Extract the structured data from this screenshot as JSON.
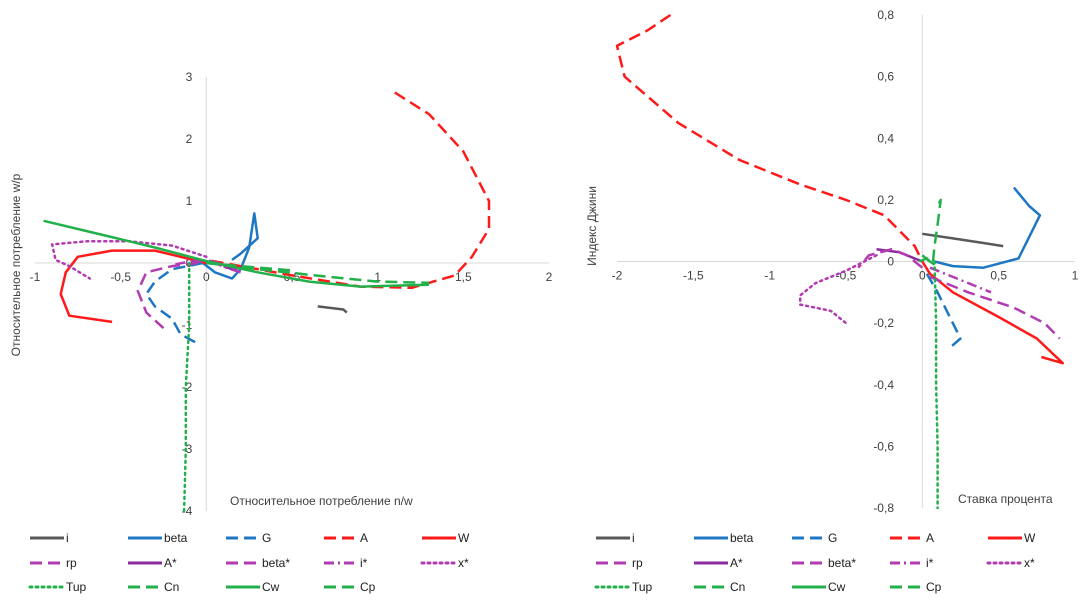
{
  "legend_entries": [
    {
      "key": "i",
      "label": "i",
      "color": "#595959",
      "dash": "solid"
    },
    {
      "key": "beta",
      "label": "beta",
      "color": "#1f77c4",
      "dash": "solid"
    },
    {
      "key": "G",
      "label": "G",
      "color": "#1f77c4",
      "dash": "dash"
    },
    {
      "key": "A",
      "label": "A",
      "color": "#ff1a1a",
      "dash": "dash"
    },
    {
      "key": "W",
      "label": "W",
      "color": "#ff1a1a",
      "dash": "solid"
    },
    {
      "key": "rp",
      "label": "rp",
      "color": "#b23bb2",
      "dash": "dash"
    },
    {
      "key": "A*",
      "label": "A*",
      "color": "#8a2b9e",
      "dash": "solid"
    },
    {
      "key": "beta*",
      "label": "beta*",
      "color": "#b23bb2",
      "dash": "dash"
    },
    {
      "key": "i*",
      "label": "i*",
      "color": "#b23bb2",
      "dash": "dashdot"
    },
    {
      "key": "x*",
      "label": "x*",
      "color": "#b23bb2",
      "dash": "dot"
    },
    {
      "key": "Tup",
      "label": "Tup",
      "color": "#22b04a",
      "dash": "dot"
    },
    {
      "key": "Cn",
      "label": "Cn",
      "color": "#22b04a",
      "dash": "dash"
    },
    {
      "key": "Cw",
      "label": "Cw",
      "color": "#22b04a",
      "dash": "solid"
    },
    {
      "key": "Cp",
      "label": "Cp",
      "color": "#22b04a",
      "dash": "dash"
    }
  ],
  "chart_data": [
    {
      "type": "line",
      "xlabel": "Относительное потребление n/w",
      "ylabel": "Относительное потребление w/p",
      "xlim": [
        -1,
        2
      ],
      "ylim": [
        -4,
        3
      ],
      "xticks": [
        "-1",
        "-0,5",
        "0",
        "0,5",
        "1",
        "1,5",
        "2"
      ],
      "yticks": [
        "-4",
        "-3",
        "-2",
        "-1",
        "0",
        "1",
        "2",
        "3"
      ],
      "series": [
        {
          "name": "i",
          "points": [
            [
              0.65,
              -0.7
            ],
            [
              0.8,
              -0.75
            ],
            [
              0.82,
              -0.8
            ]
          ]
        },
        {
          "name": "beta",
          "points": [
            [
              0.15,
              0.05
            ],
            [
              0.2,
              0.15
            ],
            [
              0.3,
              0.4
            ],
            [
              0.28,
              0.8
            ],
            [
              0.25,
              0.25
            ],
            [
              0.2,
              -0.1
            ],
            [
              0.15,
              -0.25
            ],
            [
              0.05,
              -0.15
            ],
            [
              -0.02,
              0.0
            ]
          ]
        },
        {
          "name": "G",
          "points": [
            [
              -0.02,
              0.0
            ],
            [
              -0.2,
              -0.1
            ],
            [
              -0.3,
              -0.3
            ],
            [
              -0.35,
              -0.5
            ],
            [
              -0.3,
              -0.7
            ],
            [
              -0.2,
              -0.9
            ],
            [
              -0.15,
              -1.15
            ],
            [
              -0.05,
              -1.3
            ]
          ]
        },
        {
          "name": "A",
          "points": [
            [
              1.1,
              2.75
            ],
            [
              1.3,
              2.4
            ],
            [
              1.5,
              1.8
            ],
            [
              1.65,
              1.0
            ],
            [
              1.65,
              0.55
            ],
            [
              1.55,
              0.1
            ],
            [
              1.45,
              -0.2
            ],
            [
              1.2,
              -0.4
            ],
            [
              0.9,
              -0.38
            ],
            [
              0.5,
              -0.2
            ],
            [
              0.2,
              -0.05
            ],
            [
              0.0,
              0.05
            ]
          ]
        },
        {
          "name": "W",
          "points": [
            [
              0.0,
              0.0
            ],
            [
              -0.3,
              0.2
            ],
            [
              -0.55,
              0.2
            ],
            [
              -0.75,
              0.1
            ],
            [
              -0.82,
              -0.15
            ],
            [
              -0.85,
              -0.5
            ],
            [
              -0.8,
              -0.85
            ],
            [
              -0.55,
              -0.95
            ]
          ]
        },
        {
          "name": "rp",
          "points": [
            [
              0.18,
              -0.12
            ],
            [
              0.1,
              -0.02
            ],
            [
              0.0,
              0.05
            ],
            [
              -0.1,
              0.02
            ],
            [
              -0.18,
              -0.02
            ]
          ]
        },
        {
          "name": "A*",
          "points": [
            [
              0.18,
              -0.12
            ],
            [
              0.15,
              -0.1
            ],
            [
              0.1,
              -0.05
            ]
          ]
        },
        {
          "name": "beta*",
          "points": [
            [
              -0.05,
              0.0
            ],
            [
              -0.2,
              -0.05
            ],
            [
              -0.35,
              -0.15
            ],
            [
              -0.4,
              -0.45
            ],
            [
              -0.35,
              -0.8
            ],
            [
              -0.25,
              -1.05
            ]
          ]
        },
        {
          "name": "i*",
          "points": [
            [
              0.2,
              -0.15
            ],
            [
              0.12,
              -0.08
            ],
            [
              0.05,
              0.0
            ],
            [
              -0.05,
              0.03
            ],
            [
              -0.12,
              0.05
            ]
          ]
        },
        {
          "name": "x*",
          "points": [
            [
              0.0,
              0.1
            ],
            [
              -0.2,
              0.28
            ],
            [
              -0.45,
              0.35
            ],
            [
              -0.7,
              0.35
            ],
            [
              -0.9,
              0.3
            ],
            [
              -0.88,
              0.05
            ],
            [
              -0.8,
              -0.05
            ],
            [
              -0.68,
              -0.25
            ]
          ]
        },
        {
          "name": "Tup",
          "points": [
            [
              -0.1,
              0.0
            ],
            [
              -0.1,
              -1.0
            ],
            [
              -0.12,
              -2.0
            ],
            [
              -0.12,
              -3.0
            ],
            [
              -0.13,
              -4.0
            ]
          ]
        },
        {
          "name": "Cn",
          "points": [
            [
              0.0,
              0.0
            ],
            [
              0.3,
              -0.1
            ],
            [
              0.7,
              -0.22
            ],
            [
              1.0,
              -0.3
            ],
            [
              1.3,
              -0.32
            ]
          ]
        },
        {
          "name": "Cw",
          "points": [
            [
              -0.95,
              0.68
            ],
            [
              -0.6,
              0.45
            ],
            [
              -0.3,
              0.25
            ],
            [
              0.0,
              0.03
            ],
            [
              0.3,
              -0.15
            ],
            [
              0.6,
              -0.3
            ],
            [
              0.9,
              -0.38
            ],
            [
              1.3,
              -0.35
            ]
          ]
        },
        {
          "name": "Cp",
          "points": [
            [
              0.0,
              0.0
            ],
            [
              0.2,
              -0.05
            ],
            [
              0.5,
              -0.12
            ]
          ]
        }
      ]
    },
    {
      "type": "line",
      "xlabel": "Ставка процента",
      "ylabel": "Индекс Джини",
      "xlim": [
        -2,
        1
      ],
      "ylim": [
        -0.8,
        0.8
      ],
      "xticks": [
        "-2",
        "-1,5",
        "-1",
        "-0,5",
        "0",
        "0,5",
        "1"
      ],
      "yticks": [
        "-0,8",
        "-0,6",
        "-0,4",
        "-0,2",
        "0",
        "0,2",
        "0,4",
        "0,6",
        "0,8"
      ],
      "series": [
        {
          "name": "i",
          "points": [
            [
              0.0,
              0.09
            ],
            [
              0.2,
              0.075
            ],
            [
              0.4,
              0.06
            ],
            [
              0.53,
              0.05
            ]
          ]
        },
        {
          "name": "beta",
          "points": [
            [
              0.6,
              0.24
            ],
            [
              0.7,
              0.18
            ],
            [
              0.77,
              0.15
            ],
            [
              0.72,
              0.1
            ],
            [
              0.63,
              0.01
            ],
            [
              0.4,
              -0.02
            ],
            [
              0.2,
              -0.015
            ],
            [
              0.08,
              0.0
            ]
          ]
        },
        {
          "name": "G",
          "points": [
            [
              0.03,
              -0.04
            ],
            [
              0.1,
              -0.1
            ],
            [
              0.18,
              -0.18
            ],
            [
              0.25,
              -0.25
            ],
            [
              0.18,
              -0.28
            ]
          ]
        },
        {
          "name": "A",
          "points": [
            [
              -1.65,
              0.8
            ],
            [
              -1.8,
              0.75
            ],
            [
              -2.0,
              0.7
            ],
            [
              -1.95,
              0.6
            ],
            [
              -1.6,
              0.45
            ],
            [
              -1.2,
              0.33
            ],
            [
              -0.8,
              0.25
            ],
            [
              -0.5,
              0.2
            ],
            [
              -0.25,
              0.15
            ],
            [
              -0.05,
              0.05
            ],
            [
              0.0,
              0.0
            ]
          ]
        },
        {
          "name": "W",
          "points": [
            [
              0.0,
              0.0
            ],
            [
              0.05,
              -0.04
            ],
            [
              0.2,
              -0.1
            ],
            [
              0.5,
              -0.18
            ],
            [
              0.75,
              -0.25
            ],
            [
              0.92,
              -0.33
            ],
            [
              0.78,
              -0.31
            ]
          ]
        },
        {
          "name": "rp",
          "points": [
            [
              0.05,
              -0.05
            ],
            [
              0.3,
              -0.1
            ],
            [
              0.6,
              -0.15
            ],
            [
              0.8,
              -0.2
            ],
            [
              0.9,
              -0.25
            ]
          ]
        },
        {
          "name": "A*",
          "points": [
            [
              0.0,
              0.0
            ],
            [
              -0.15,
              0.03
            ],
            [
              -0.3,
              0.04
            ]
          ]
        },
        {
          "name": "beta*",
          "points": [
            [
              0.0,
              -0.02
            ],
            [
              -0.1,
              0.02
            ],
            [
              -0.2,
              0.04
            ],
            [
              -0.35,
              0.02
            ],
            [
              -0.42,
              -0.02
            ]
          ]
        },
        {
          "name": "i*",
          "points": [
            [
              0.05,
              -0.02
            ],
            [
              0.2,
              -0.05
            ],
            [
              0.35,
              -0.08
            ],
            [
              0.45,
              -0.1
            ]
          ]
        },
        {
          "name": "x*",
          "points": [
            [
              -0.3,
              0.02
            ],
            [
              -0.5,
              -0.03
            ],
            [
              -0.7,
              -0.07
            ],
            [
              -0.8,
              -0.11
            ],
            [
              -0.8,
              -0.14
            ],
            [
              -0.6,
              -0.16
            ],
            [
              -0.5,
              -0.2
            ]
          ]
        },
        {
          "name": "Tup",
          "points": [
            [
              0.08,
              0.0
            ],
            [
              0.09,
              -0.2
            ],
            [
              0.09,
              -0.4
            ],
            [
              0.1,
              -0.6
            ],
            [
              0.1,
              -0.8
            ]
          ]
        },
        {
          "name": "Cn",
          "points": [
            [
              0.07,
              0.0
            ],
            [
              0.08,
              0.05
            ],
            [
              0.1,
              0.12
            ],
            [
              0.12,
              0.2
            ],
            [
              0.1,
              0.18
            ]
          ]
        },
        {
          "name": "Cw",
          "points": [
            [
              0.0,
              0.02
            ],
            [
              0.05,
              0.0
            ],
            [
              0.08,
              -0.01
            ]
          ]
        },
        {
          "name": "Cp",
          "points": [
            [
              -0.02,
              0.0
            ],
            [
              0.03,
              0.01
            ],
            [
              0.06,
              -0.01
            ]
          ]
        }
      ]
    }
  ]
}
